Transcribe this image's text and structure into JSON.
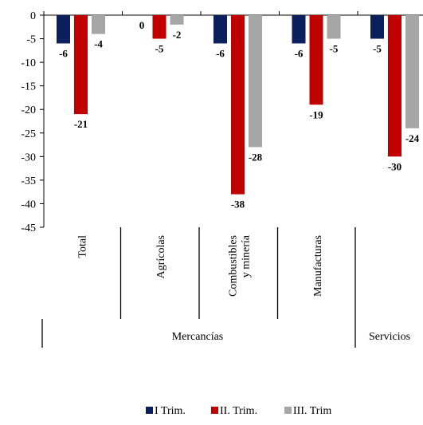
{
  "chart_data": {
    "type": "bar",
    "ylim": [
      -45,
      0
    ],
    "yticks": [
      0,
      -5,
      -10,
      -15,
      -20,
      -25,
      -30,
      -35,
      -40,
      -45
    ],
    "categories": [
      "Total",
      "Agrícolas",
      "Combustibles y minería",
      "Manufacturas",
      "Servicios"
    ],
    "category_lines": [
      [
        "Total"
      ],
      [
        "Agrícolas"
      ],
      [
        "Combustibles",
        "y minería"
      ],
      [
        "Manufacturas"
      ],
      []
    ],
    "groups": [
      {
        "label": "Mercancías",
        "categories": [
          "Total",
          "Agrícolas",
          "Combustibles y minería",
          "Manufacturas"
        ]
      },
      {
        "label": "Servicios",
        "categories": [
          "Servicios"
        ]
      }
    ],
    "series": [
      {
        "name": "I Trim.",
        "color": "#0a1f5c",
        "values": [
          -6,
          0,
          -6,
          -6,
          -5
        ]
      },
      {
        "name": "II. Trim.",
        "color": "#c00000",
        "values": [
          -21,
          -5,
          -38,
          -19,
          -30
        ]
      },
      {
        "name": "III. Trim",
        "color": "#a6a6a6",
        "values": [
          -4,
          -2,
          -28,
          -5,
          -24
        ]
      }
    ],
    "legend_position": "bottom-center",
    "grid": false
  }
}
